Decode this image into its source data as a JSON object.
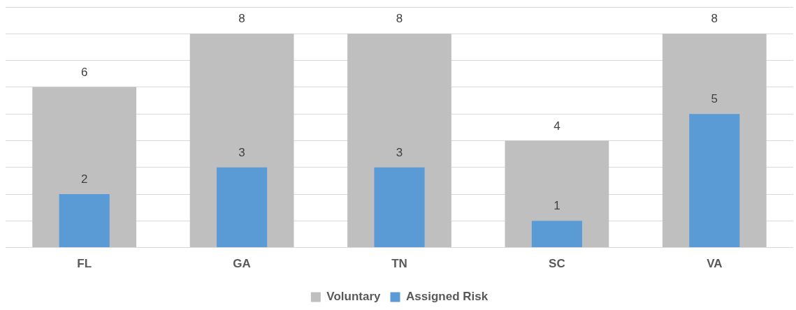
{
  "chart_data": {
    "type": "bar",
    "categories": [
      "FL",
      "GA",
      "TN",
      "SC",
      "VA"
    ],
    "series": [
      {
        "name": "Voluntary",
        "color": "#bfbfbf",
        "values": [
          6,
          8,
          8,
          4,
          8
        ]
      },
      {
        "name": "Assigned Risk",
        "color": "#5b9bd5",
        "values": [
          2,
          3,
          3,
          1,
          5
        ]
      }
    ],
    "ylim": [
      0,
      9
    ],
    "yticks": [
      {
        "value": 0,
        "label": null
      },
      {
        "value": 1,
        "label": null
      },
      {
        "value": 2,
        "label": null
      },
      {
        "value": 3,
        "label": null
      },
      {
        "value": 4,
        "label": null
      },
      {
        "value": 5,
        "label": null
      },
      {
        "value": 6,
        "label": null
      },
      {
        "value": 7,
        "label": null
      },
      {
        "value": 8,
        "label": null
      },
      {
        "value": 9,
        "label": null
      }
    ],
    "grid": "y",
    "legend": "bottom",
    "data_labels": true,
    "tick_labels": "x"
  }
}
